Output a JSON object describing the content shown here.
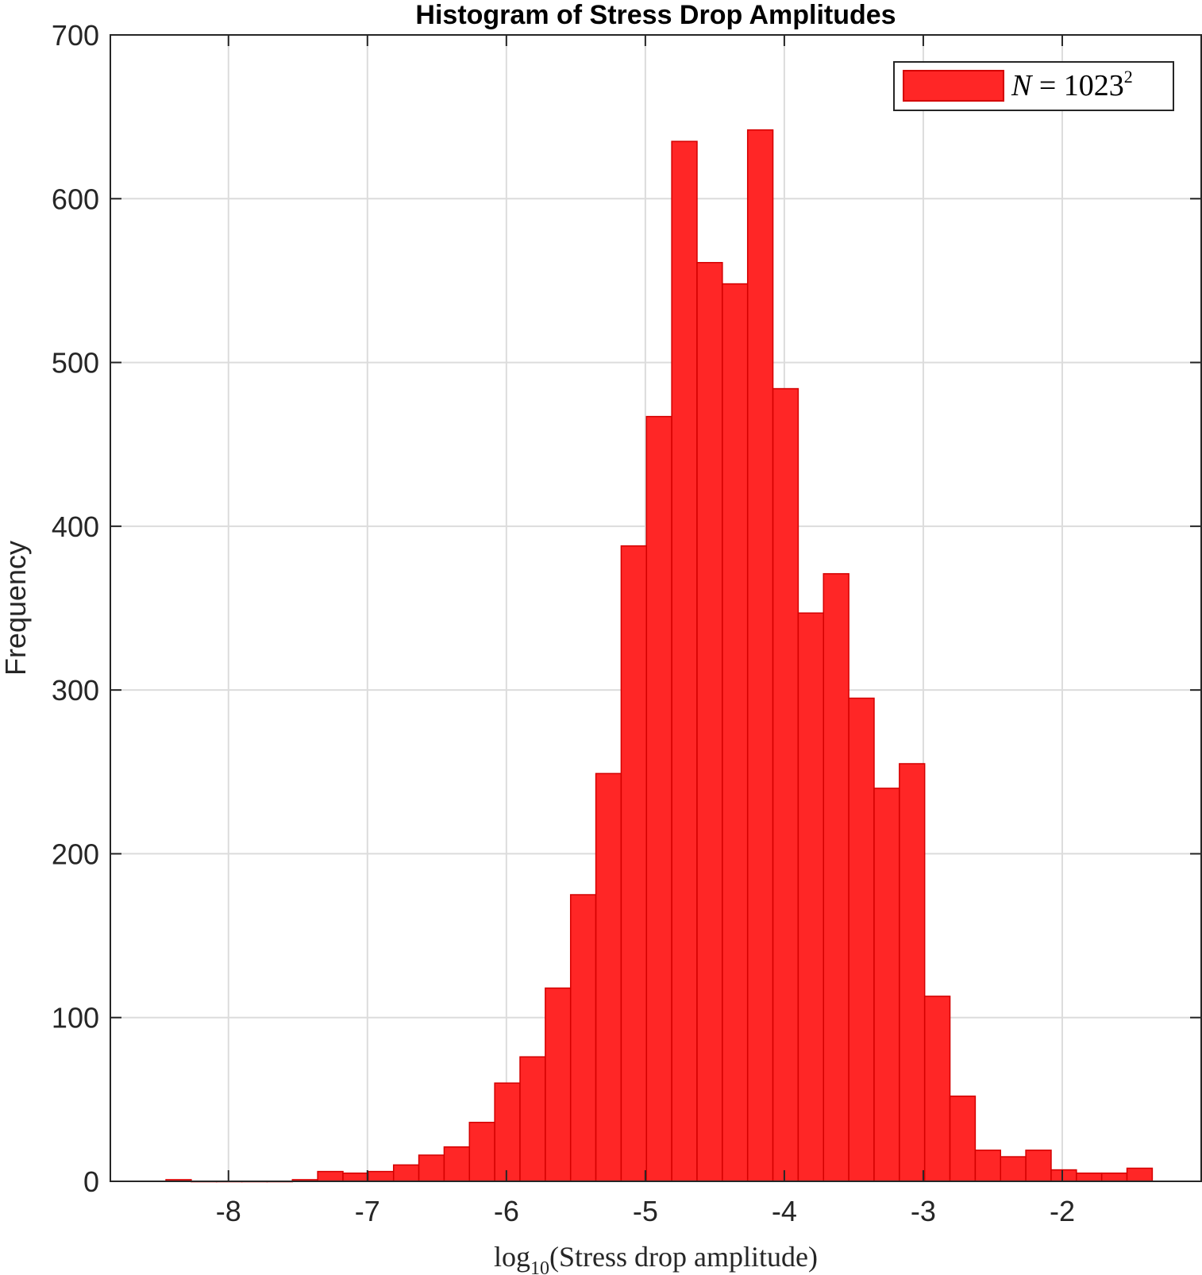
{
  "chart_data": {
    "type": "bar",
    "title": "Histogram of Stress Drop Amplitudes",
    "xlabel": "log10(Stress drop amplitude)",
    "ylabel": "Frequency",
    "xlim": [
      -8.85,
      -1.0
    ],
    "ylim": [
      0,
      700
    ],
    "xticks": [
      -8,
      -7,
      -6,
      -5,
      -4,
      -3,
      -2
    ],
    "yticks": [
      0,
      100,
      200,
      300,
      400,
      500,
      600,
      700
    ],
    "grid": true,
    "legend": {
      "label": "N = 1023^2",
      "placement": "top-right"
    },
    "bin_start": -8.45,
    "bin_width": 0.182,
    "values": [
      1,
      0,
      0,
      0,
      0,
      1,
      6,
      5,
      6,
      10,
      16,
      21,
      36,
      60,
      76,
      118,
      175,
      249,
      388,
      467,
      635,
      561,
      548,
      642,
      484,
      347,
      371,
      295,
      240,
      255,
      113,
      52,
      19,
      15,
      19,
      7,
      5,
      5,
      8
    ],
    "color": "#ff2626",
    "edge_color": "#d40000"
  }
}
